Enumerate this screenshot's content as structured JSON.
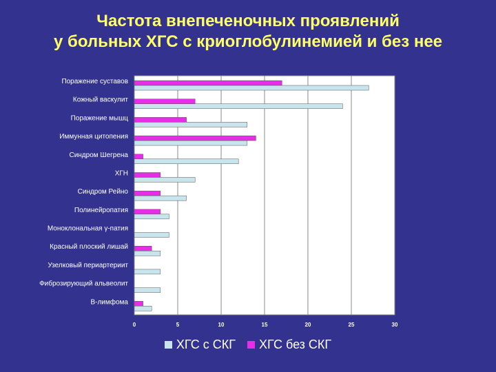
{
  "title": {
    "line1": "Частота внепеченочных проявлений",
    "line2": "у больных ХГС с криоглобулинемией и без нее"
  },
  "colors": {
    "background": "#33338f",
    "title": "#ffff66",
    "series_with": "#c8e4ec",
    "series_without": "#e62ee6",
    "plot_bg": "#ffffff",
    "grid": "#8a8a8a"
  },
  "chart_data": {
    "type": "bar",
    "orientation": "horizontal",
    "title": "Частота внепеченочных проявлений у больных ХГС с криоглобулинемией и без нее",
    "categories": [
      "Поражение суставов",
      "Кожный васкулит",
      "Поражение мышц",
      "Иммунная цитопения",
      "Синдром Шегрена",
      "ХГН",
      "Синдром Рейно",
      "Полинейропатия",
      "Моноклональная γ-патия",
      "Красный плоский лишай",
      "Узелковый периартериит",
      "Фиброзирующий альвеолит",
      "В-лимфома"
    ],
    "series": [
      {
        "name": "ХГС с СКГ",
        "values": [
          27,
          24,
          13,
          13,
          12,
          7,
          6,
          4,
          4,
          3,
          3,
          3,
          2
        ]
      },
      {
        "name": "ХГС без СКГ",
        "values": [
          17,
          7,
          6,
          14,
          1,
          3,
          3,
          3,
          0,
          2,
          0,
          0,
          1
        ]
      }
    ],
    "xlim": [
      0,
      30
    ],
    "xticks": [
      0,
      5,
      10,
      15,
      20,
      25,
      30
    ],
    "grid": true,
    "legend_position": "bottom"
  }
}
